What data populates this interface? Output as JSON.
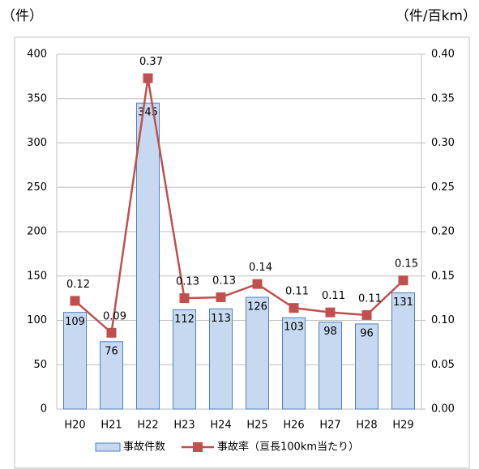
{
  "chart_data": {
    "type": "combo",
    "y_label": "（件）",
    "y2_label": "（件/百km）",
    "categories": [
      "H20",
      "H21",
      "H22",
      "H23",
      "H24",
      "H25",
      "H26",
      "H27",
      "H28",
      "H29"
    ],
    "series": [
      {
        "name": "事故件数",
        "type": "bar",
        "color": "#c6d9f0",
        "edge_color": "#4f81bd",
        "values": [
          109,
          76,
          345,
          112,
          113,
          126,
          103,
          98,
          96,
          131
        ]
      },
      {
        "name": "事故率（亘長100km当たり）",
        "type": "line",
        "axis": "y2",
        "color": "#c0504d",
        "values": [
          0.122,
          0.086,
          0.373,
          0.125,
          0.126,
          0.141,
          0.114,
          0.109,
          0.106,
          0.145
        ],
        "value_labels": [
          "0.12",
          "0.09",
          "0.37",
          "0.13",
          "0.13",
          "0.14",
          "0.11",
          "0.11",
          "0.11",
          "0.15"
        ]
      }
    ],
    "ylim": [
      0,
      400
    ],
    "yticks": [
      0,
      50,
      100,
      150,
      200,
      250,
      300,
      350,
      400
    ],
    "y2lim": [
      0,
      0.4
    ],
    "y2ticks": [
      {
        "value": 0,
        "label": "0.00"
      },
      0.05,
      {
        "value": 0.1,
        "label": "0.10"
      },
      0.15,
      {
        "value": 0.2,
        "label": "0.20"
      },
      0.25,
      {
        "value": 0.3,
        "label": "0.30"
      },
      0.35,
      {
        "value": 0.4,
        "label": "0.40"
      }
    ],
    "grid": true
  }
}
